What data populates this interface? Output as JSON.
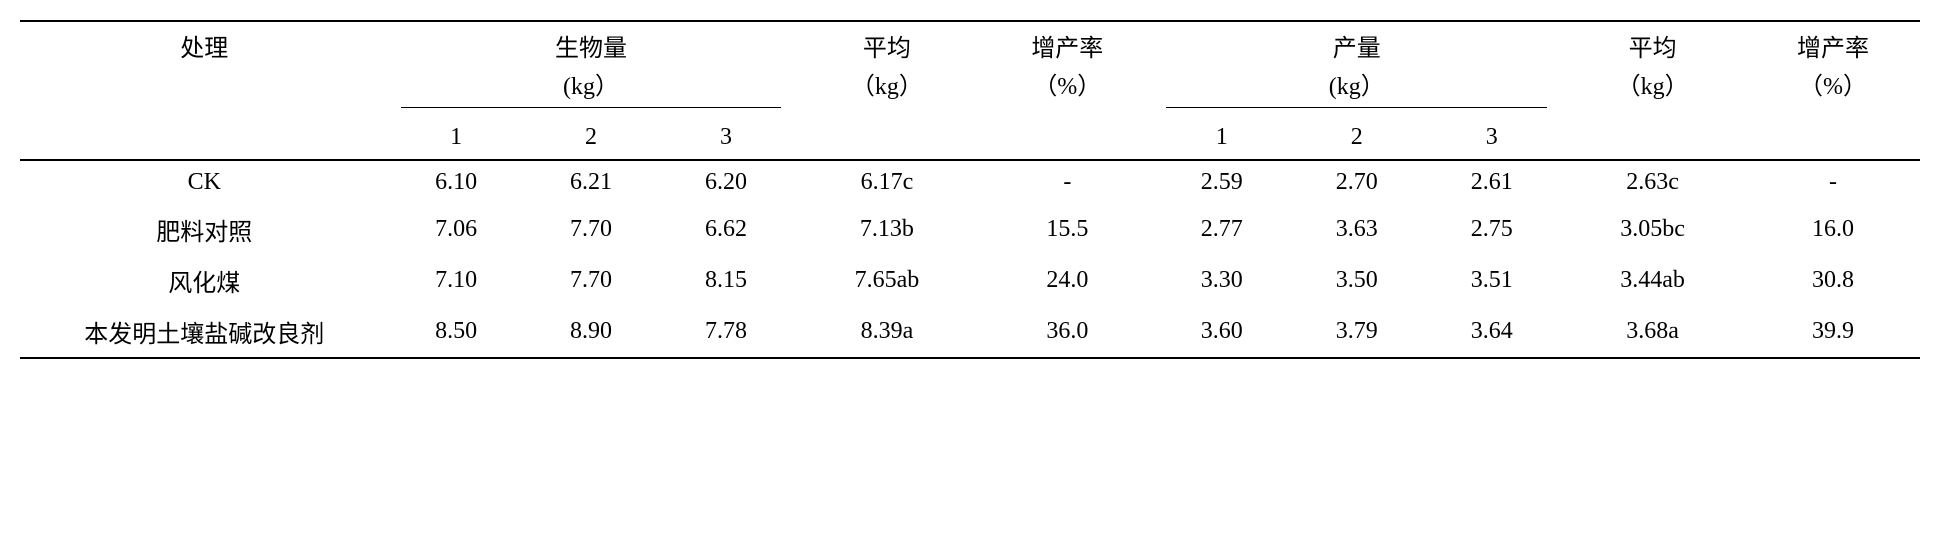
{
  "headers": {
    "treatment": "处理",
    "biomass": "生物量",
    "biomass_unit": "(kg）",
    "avg1": "平均",
    "avg1_unit": "（kg）",
    "rate1": "增产率",
    "rate1_unit": "（%）",
    "yield": "产量",
    "yield_unit": "(kg）",
    "avg2": "平均",
    "avg2_unit": "（kg）",
    "rate2": "增产率",
    "rate2_unit": "（%）",
    "sub1": "1",
    "sub2": "2",
    "sub3": "3"
  },
  "rows": [
    {
      "treatment": "CK",
      "b1": "6.10",
      "b2": "6.21",
      "b3": "6.20",
      "bavg": "6.17c",
      "brate": "-",
      "y1": "2.59",
      "y2": "2.70",
      "y3": "2.61",
      "yavg": "2.63c",
      "yrate": "-"
    },
    {
      "treatment": "肥料对照",
      "b1": "7.06",
      "b2": "7.70",
      "b3": "6.62",
      "bavg": "7.13b",
      "brate": "15.5",
      "y1": "2.77",
      "y2": "3.63",
      "y3": "2.75",
      "yavg": "3.05bc",
      "yrate": "16.0"
    },
    {
      "treatment": "风化煤",
      "b1": "7.10",
      "b2": "7.70",
      "b3": "8.15",
      "bavg": "7.65ab",
      "brate": "24.0",
      "y1": "3.30",
      "y2": "3.50",
      "y3": "3.51",
      "yavg": "3.44ab",
      "yrate": "30.8"
    },
    {
      "treatment": "本发明土壤盐碱改良剂",
      "b1": "8.50",
      "b2": "8.90",
      "b3": "7.78",
      "bavg": "8.39a",
      "brate": "36.0",
      "y1": "3.60",
      "y2": "3.79",
      "y3": "3.64",
      "yavg": "3.68a",
      "yrate": "39.9"
    }
  ]
}
